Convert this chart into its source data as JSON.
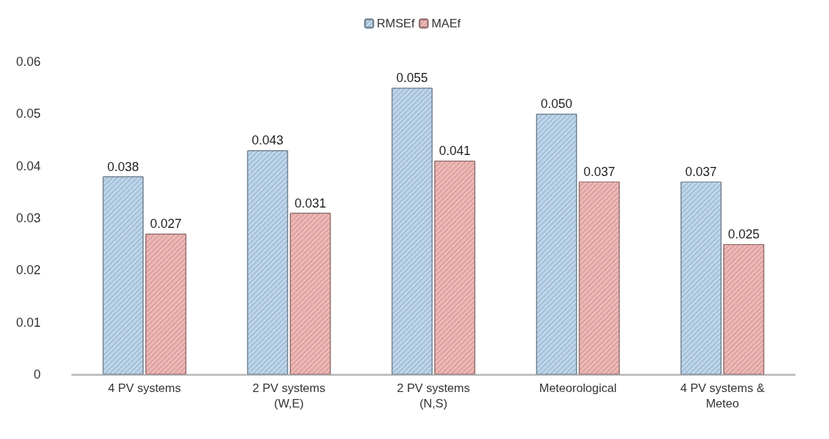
{
  "chart_data": {
    "type": "bar",
    "categories": [
      "4 PV systems",
      "2 PV systems\n(W,E)",
      "2 PV systems\n(N,S)",
      "Meteorological",
      "4 PV systems &\nMeteo"
    ],
    "series": [
      {
        "name": "RMSEf",
        "color": "#bdd7ee",
        "values": [
          0.038,
          0.043,
          0.055,
          0.05,
          0.037
        ],
        "value_labels": [
          "0.038",
          "0.043",
          "0.055",
          "0.050",
          "0.037"
        ]
      },
      {
        "name": "MAEf",
        "color": "#f2b8b6",
        "values": [
          0.027,
          0.031,
          0.041,
          0.037,
          0.025
        ],
        "value_labels": [
          "0.027",
          "0.031",
          "0.041",
          "0.037",
          "0.025"
        ]
      }
    ],
    "ylim": [
      0,
      0.06
    ],
    "yticks": [
      0,
      0.01,
      0.02,
      0.03,
      0.04,
      0.05,
      0.06
    ],
    "grid": false,
    "legend": "top"
  }
}
